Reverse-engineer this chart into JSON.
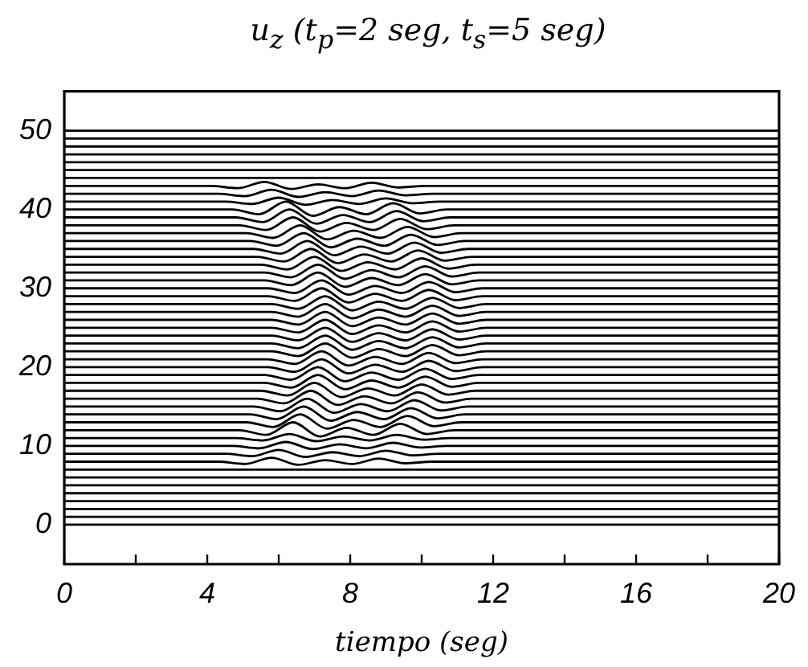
{
  "chart_data": {
    "type": "line",
    "title": "u$_{z}$ (t$_{p}$=2 seg, t$_{s}$=5 seg)",
    "xlabel": "tiempo (seg)",
    "xlim": [
      0,
      20
    ],
    "ylim": [
      -5,
      55
    ],
    "xticks": [
      0,
      {
        "value": 2,
        "label": null
      },
      4,
      {
        "value": 6,
        "label": null
      },
      8,
      {
        "value": 10,
        "label": null
      },
      12,
      {
        "value": 14,
        "label": null
      },
      16,
      {
        "value": 18,
        "label": null
      },
      20
    ],
    "yticks": [
      0,
      10,
      20,
      30,
      40,
      50
    ],
    "legend": false,
    "grid": false,
    "series": [
      {
        "color": "#000000",
        "x": [
          0,
          20
        ],
        "values": [
          0,
          0
        ]
      },
      {
        "color": "#000000",
        "x": [
          0,
          20
        ],
        "values": [
          1,
          1
        ]
      },
      {
        "color": "#000000",
        "x": [
          0,
          20
        ],
        "values": [
          2,
          2
        ]
      },
      {
        "color": "#000000",
        "x": [
          0,
          20
        ],
        "values": [
          3,
          3
        ]
      },
      {
        "color": "#000000",
        "x": [
          0,
          20
        ],
        "values": [
          4,
          4
        ]
      },
      {
        "color": "#000000",
        "x": [
          0,
          20
        ],
        "values": [
          5,
          5
        ]
      },
      {
        "color": "#000000",
        "x": [
          0,
          20
        ],
        "values": [
          6,
          6
        ]
      },
      {
        "color": "#000000",
        "x": [
          0,
          20
        ],
        "values": [
          7,
          7
        ]
      },
      {
        "color": "#000000",
        "x": [
          0,
          4.3,
          5.05,
          5.8,
          6.55,
          7.3,
          8.05,
          8.8,
          9.55,
          10.3,
          20
        ],
        "values": [
          8,
          8,
          7.7,
          8.5,
          7.6,
          8.2,
          7.7,
          8.4,
          7.8,
          8,
          8
        ]
      },
      {
        "color": "#000000",
        "x": [
          0,
          4.5,
          5.25,
          6,
          6.75,
          7.5,
          8.25,
          9,
          9.75,
          10.5,
          20
        ],
        "values": [
          9,
          9,
          8.7,
          9.5,
          8.6,
          9.2,
          8.7,
          9.4,
          8.8,
          9,
          9
        ]
      },
      {
        "color": "#000000",
        "x": [
          0,
          4.7,
          5.45,
          6.2,
          6.95,
          7.7,
          8.45,
          9.2,
          9.95,
          10.7,
          20
        ],
        "values": [
          10,
          10,
          9.7,
          10.5,
          9.6,
          10.2,
          9.7,
          10.4,
          9.8,
          10,
          10
        ]
      },
      {
        "color": "#000000",
        "x": [
          0,
          4.8,
          5.55,
          6.3,
          7.05,
          7.8,
          8.55,
          9.3,
          10.05,
          10.8,
          20
        ],
        "values": [
          11,
          11,
          10.7,
          11.5,
          10.6,
          11.2,
          10.7,
          11.4,
          10.8,
          11,
          11
        ]
      },
      {
        "color": "#000000",
        "x": [
          0,
          4.9,
          5.65,
          6.4,
          7.15,
          7.9,
          8.65,
          9.4,
          10.15,
          10.9,
          20
        ],
        "values": [
          12,
          12,
          11.4,
          13,
          11.2,
          12.3,
          11.4,
          12.8,
          11.5,
          12,
          12
        ]
      },
      {
        "color": "#000000",
        "x": [
          0,
          5.1,
          5.85,
          6.6,
          7.35,
          8.1,
          8.85,
          9.6,
          10.35,
          11.1,
          20
        ],
        "values": [
          13,
          13,
          12.4,
          14,
          12.2,
          13.3,
          12.4,
          13.8,
          12.5,
          13,
          13
        ]
      },
      {
        "color": "#000000",
        "x": [
          0,
          5.2,
          5.95,
          6.7,
          7.45,
          8.2,
          8.95,
          9.7,
          10.45,
          11.2,
          20
        ],
        "values": [
          14,
          14,
          13.4,
          15,
          13.2,
          14.3,
          13.4,
          14.8,
          13.5,
          14,
          14
        ]
      },
      {
        "color": "#000000",
        "x": [
          0,
          5.3,
          6.05,
          6.8,
          7.55,
          8.3,
          9.05,
          9.8,
          10.55,
          11.3,
          20
        ],
        "values": [
          15,
          15,
          14.4,
          16,
          14.2,
          15.3,
          14.4,
          15.8,
          14.5,
          15,
          15
        ]
      },
      {
        "color": "#000000",
        "x": [
          0,
          5.4,
          6.15,
          6.9,
          7.65,
          8.4,
          9.15,
          9.9,
          10.65,
          11.4,
          20
        ],
        "values": [
          16,
          16,
          15.4,
          17,
          15.2,
          16.3,
          15.4,
          16.8,
          15.5,
          16,
          16
        ]
      },
      {
        "color": "#000000",
        "x": [
          0,
          5.5,
          6.25,
          7,
          7.75,
          8.5,
          9.25,
          10,
          10.75,
          11.5,
          20
        ],
        "values": [
          17,
          17,
          16.4,
          18,
          16.2,
          17.3,
          16.4,
          17.8,
          16.5,
          17,
          17
        ]
      },
      {
        "color": "#000000",
        "x": [
          0,
          5.6,
          6.35,
          7.1,
          7.85,
          8.6,
          9.35,
          10.1,
          10.85,
          11.6,
          20
        ],
        "values": [
          18,
          18,
          17.4,
          19,
          17.2,
          18.3,
          17.4,
          18.8,
          17.5,
          18,
          18
        ]
      },
      {
        "color": "#000000",
        "x": [
          0,
          5.6,
          6.35,
          7.1,
          7.85,
          8.6,
          9.35,
          10.1,
          10.85,
          11.6,
          20
        ],
        "values": [
          19,
          19,
          18.4,
          20,
          18.2,
          19.3,
          18.4,
          19.8,
          18.5,
          19,
          19
        ]
      },
      {
        "color": "#000000",
        "x": [
          0,
          5.7,
          6.45,
          7.2,
          7.95,
          8.7,
          9.45,
          10.2,
          10.95,
          11.7,
          20
        ],
        "values": [
          20,
          20,
          19.4,
          21,
          19.2,
          20.3,
          19.4,
          20.8,
          19.5,
          20,
          20
        ]
      },
      {
        "color": "#000000",
        "x": [
          0,
          5.7,
          6.45,
          7.2,
          7.95,
          8.7,
          9.45,
          10.2,
          10.95,
          11.7,
          20
        ],
        "values": [
          21,
          21,
          20.4,
          22,
          20.2,
          21.3,
          20.4,
          21.8,
          20.5,
          21,
          21
        ]
      },
      {
        "color": "#000000",
        "x": [
          0,
          5.8,
          6.55,
          7.3,
          8.05,
          8.8,
          9.55,
          10.3,
          11.05,
          11.8,
          20
        ],
        "values": [
          22,
          22,
          21.4,
          23,
          21.2,
          22.3,
          21.4,
          22.8,
          21.5,
          22,
          22
        ]
      },
      {
        "color": "#000000",
        "x": [
          0,
          5.8,
          6.55,
          7.3,
          8.05,
          8.8,
          9.55,
          10.3,
          11.05,
          11.8,
          20
        ],
        "values": [
          23,
          23,
          22.4,
          24,
          22.2,
          23.3,
          22.4,
          23.8,
          22.5,
          23,
          23
        ]
      },
      {
        "color": "#000000",
        "x": [
          0,
          5.8,
          6.55,
          7.3,
          8.05,
          8.8,
          9.55,
          10.3,
          11.05,
          11.8,
          20
        ],
        "values": [
          24,
          24,
          23.4,
          25,
          23.2,
          24.3,
          23.4,
          24.8,
          23.5,
          24,
          24
        ]
      },
      {
        "color": "#000000",
        "x": [
          0,
          5.8,
          6.55,
          7.3,
          8.05,
          8.8,
          9.55,
          10.3,
          11.05,
          11.8,
          20
        ],
        "values": [
          25,
          25,
          24.4,
          26,
          24.2,
          25.3,
          24.4,
          25.8,
          24.5,
          25,
          25
        ]
      },
      {
        "color": "#000000",
        "x": [
          0,
          5.8,
          6.55,
          7.3,
          8.05,
          8.8,
          9.55,
          10.3,
          11.05,
          11.8,
          20
        ],
        "values": [
          26,
          26,
          25.4,
          27,
          25.2,
          26.3,
          25.4,
          26.8,
          25.5,
          26,
          26
        ]
      },
      {
        "color": "#000000",
        "x": [
          0,
          5.8,
          6.55,
          7.3,
          8.05,
          8.8,
          9.55,
          10.3,
          11.05,
          11.8,
          20
        ],
        "values": [
          27,
          27,
          26.4,
          28,
          26.2,
          27.3,
          26.4,
          27.8,
          26.5,
          27,
          27
        ]
      },
      {
        "color": "#000000",
        "x": [
          0,
          5.8,
          6.55,
          7.3,
          8.05,
          8.8,
          9.55,
          10.3,
          11.05,
          11.8,
          20
        ],
        "values": [
          28,
          28,
          27.4,
          29,
          27.2,
          28.3,
          27.4,
          28.8,
          27.5,
          28,
          28
        ]
      },
      {
        "color": "#000000",
        "x": [
          0,
          5.7,
          6.45,
          7.2,
          7.95,
          8.7,
          9.45,
          10.2,
          10.95,
          11.7,
          20
        ],
        "values": [
          29,
          29,
          28.4,
          30,
          28.2,
          29.3,
          28.4,
          29.8,
          28.5,
          29,
          29
        ]
      },
      {
        "color": "#000000",
        "x": [
          0,
          5.7,
          6.45,
          7.2,
          7.95,
          8.7,
          9.45,
          10.2,
          10.95,
          11.7,
          20
        ],
        "values": [
          30,
          30,
          29.4,
          31,
          29.2,
          30.3,
          29.4,
          30.8,
          29.5,
          30,
          30
        ]
      },
      {
        "color": "#000000",
        "x": [
          0,
          5.6,
          6.35,
          7.1,
          7.85,
          8.6,
          9.35,
          10.1,
          10.85,
          11.6,
          20
        ],
        "values": [
          31,
          31,
          30.4,
          32,
          30.2,
          31.3,
          30.4,
          31.8,
          30.5,
          31,
          31
        ]
      },
      {
        "color": "#000000",
        "x": [
          0,
          5.6,
          6.35,
          7.1,
          7.85,
          8.6,
          9.35,
          10.1,
          10.85,
          11.6,
          20
        ],
        "values": [
          32,
          32,
          31.4,
          33,
          31.2,
          32.3,
          31.4,
          32.8,
          31.5,
          32,
          32
        ]
      },
      {
        "color": "#000000",
        "x": [
          0,
          5.5,
          6.25,
          7,
          7.75,
          8.5,
          9.25,
          10,
          10.75,
          11.5,
          20
        ],
        "values": [
          33,
          33,
          32.4,
          34,
          32.2,
          33.3,
          32.4,
          33.8,
          32.5,
          33,
          33
        ]
      },
      {
        "color": "#000000",
        "x": [
          0,
          5.4,
          6.15,
          6.9,
          7.65,
          8.4,
          9.15,
          9.9,
          10.65,
          11.4,
          20
        ],
        "values": [
          34,
          34,
          33.4,
          35,
          33.2,
          34.3,
          33.4,
          34.8,
          33.5,
          34,
          34
        ]
      },
      {
        "color": "#000000",
        "x": [
          0,
          5.3,
          6.05,
          6.8,
          7.55,
          8.3,
          9.05,
          9.8,
          10.55,
          11.3,
          20
        ],
        "values": [
          35,
          35,
          34.4,
          36,
          34.2,
          35.3,
          34.4,
          35.8,
          34.5,
          35,
          35
        ]
      },
      {
        "color": "#000000",
        "x": [
          0,
          5.2,
          5.95,
          6.7,
          7.45,
          8.2,
          8.95,
          9.7,
          10.45,
          11.2,
          20
        ],
        "values": [
          36,
          36,
          35.4,
          37,
          35.2,
          36.3,
          35.4,
          36.8,
          35.5,
          36,
          36
        ]
      },
      {
        "color": "#000000",
        "x": [
          0,
          5.1,
          5.85,
          6.6,
          7.35,
          8.1,
          8.85,
          9.6,
          10.35,
          11.1,
          20
        ],
        "values": [
          37,
          37,
          36.4,
          38,
          36.2,
          37.3,
          36.4,
          37.8,
          36.5,
          37,
          37
        ]
      },
      {
        "color": "#000000",
        "x": [
          0,
          4.9,
          5.65,
          6.4,
          7.15,
          7.9,
          8.65,
          9.4,
          10.15,
          10.9,
          20
        ],
        "values": [
          38,
          38,
          37.4,
          39,
          37.2,
          38.3,
          37.4,
          38.8,
          37.5,
          38,
          38
        ]
      },
      {
        "color": "#000000",
        "x": [
          0,
          4.8,
          5.55,
          6.3,
          7.05,
          7.8,
          8.55,
          9.3,
          10.05,
          10.8,
          20
        ],
        "values": [
          39,
          39,
          38.4,
          40,
          38.2,
          39.3,
          38.4,
          39.8,
          38.5,
          39,
          39
        ]
      },
      {
        "color": "#000000",
        "x": [
          0,
          4.7,
          5.45,
          6.2,
          6.95,
          7.7,
          8.45,
          9.2,
          9.95,
          10.7,
          20
        ],
        "values": [
          40,
          40,
          39.4,
          41,
          39.2,
          40.3,
          39.4,
          40.8,
          39.5,
          40,
          40
        ]
      },
      {
        "color": "#000000",
        "x": [
          0,
          4.5,
          5.25,
          6,
          6.75,
          7.5,
          8.25,
          9,
          9.75,
          10.5,
          20
        ],
        "values": [
          41,
          41,
          40.7,
          41.5,
          40.6,
          41.2,
          40.7,
          41.4,
          40.8,
          41,
          41
        ]
      },
      {
        "color": "#000000",
        "x": [
          0,
          4.3,
          5.05,
          5.8,
          6.55,
          7.3,
          8.05,
          8.8,
          9.55,
          10.3,
          20
        ],
        "values": [
          42,
          42,
          41.7,
          42.5,
          41.6,
          42.2,
          41.7,
          42.4,
          41.8,
          42,
          42
        ]
      },
      {
        "color": "#000000",
        "x": [
          0,
          4.1,
          4.85,
          5.6,
          6.35,
          7.1,
          7.85,
          8.6,
          9.35,
          10.1,
          20
        ],
        "values": [
          43,
          43,
          42.7,
          43.5,
          42.6,
          43.2,
          42.7,
          43.4,
          42.8,
          43,
          43
        ]
      },
      {
        "color": "#000000",
        "x": [
          0,
          20
        ],
        "values": [
          44,
          44
        ]
      },
      {
        "color": "#000000",
        "x": [
          0,
          20
        ],
        "values": [
          45,
          45
        ]
      },
      {
        "color": "#000000",
        "x": [
          0,
          20
        ],
        "values": [
          46,
          46
        ]
      },
      {
        "color": "#000000",
        "x": [
          0,
          20
        ],
        "values": [
          47,
          47
        ]
      },
      {
        "color": "#000000",
        "x": [
          0,
          20
        ],
        "values": [
          48,
          48
        ]
      },
      {
        "color": "#000000",
        "x": [
          0,
          20
        ],
        "values": [
          49,
          49
        ]
      },
      {
        "color": "#000000",
        "x": [
          0,
          20
        ],
        "values": [
          50,
          50
        ]
      }
    ]
  }
}
